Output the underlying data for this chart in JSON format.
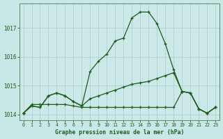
{
  "title": "Graphe pression niveau de la mer (hPa)",
  "background_color": "#c8e8e8",
  "plot_bg_color": "#cce8e8",
  "grid_color": "#b0d0d0",
  "line_color": "#1a5c1a",
  "xlim": [
    -0.5,
    23.5
  ],
  "ylim": [
    1013.8,
    1017.85
  ],
  "yticks": [
    1014,
    1015,
    1016,
    1017
  ],
  "xticks": [
    0,
    1,
    2,
    3,
    4,
    5,
    6,
    7,
    8,
    9,
    10,
    11,
    12,
    13,
    14,
    15,
    16,
    17,
    18,
    19,
    20,
    21,
    22,
    23
  ],
  "series": {
    "main": [
      1014.05,
      1014.3,
      1014.25,
      1014.65,
      1014.75,
      1014.65,
      1014.45,
      1014.3,
      1015.5,
      1015.85,
      1016.1,
      1016.55,
      1016.65,
      1017.35,
      1017.55,
      1017.55,
      1017.15,
      1016.45,
      1015.55,
      1014.8,
      1014.75,
      1014.2,
      1014.05,
      1014.25
    ],
    "mid": [
      1014.05,
      1014.3,
      1014.25,
      1014.65,
      1014.75,
      1014.65,
      1014.45,
      1014.3,
      1014.55,
      1014.65,
      1014.75,
      1014.85,
      1014.95,
      1015.05,
      1015.1,
      1015.15,
      1015.25,
      1015.35,
      1015.45,
      1014.8,
      1014.75,
      1014.2,
      1014.05,
      1014.25
    ],
    "flat": [
      1014.05,
      1014.35,
      1014.35,
      1014.35,
      1014.35,
      1014.35,
      1014.3,
      1014.25,
      1014.25,
      1014.25,
      1014.25,
      1014.25,
      1014.25,
      1014.25,
      1014.25,
      1014.25,
      1014.25,
      1014.25,
      1014.25,
      1014.8,
      1014.75,
      1014.2,
      1014.05,
      1014.25
    ]
  }
}
